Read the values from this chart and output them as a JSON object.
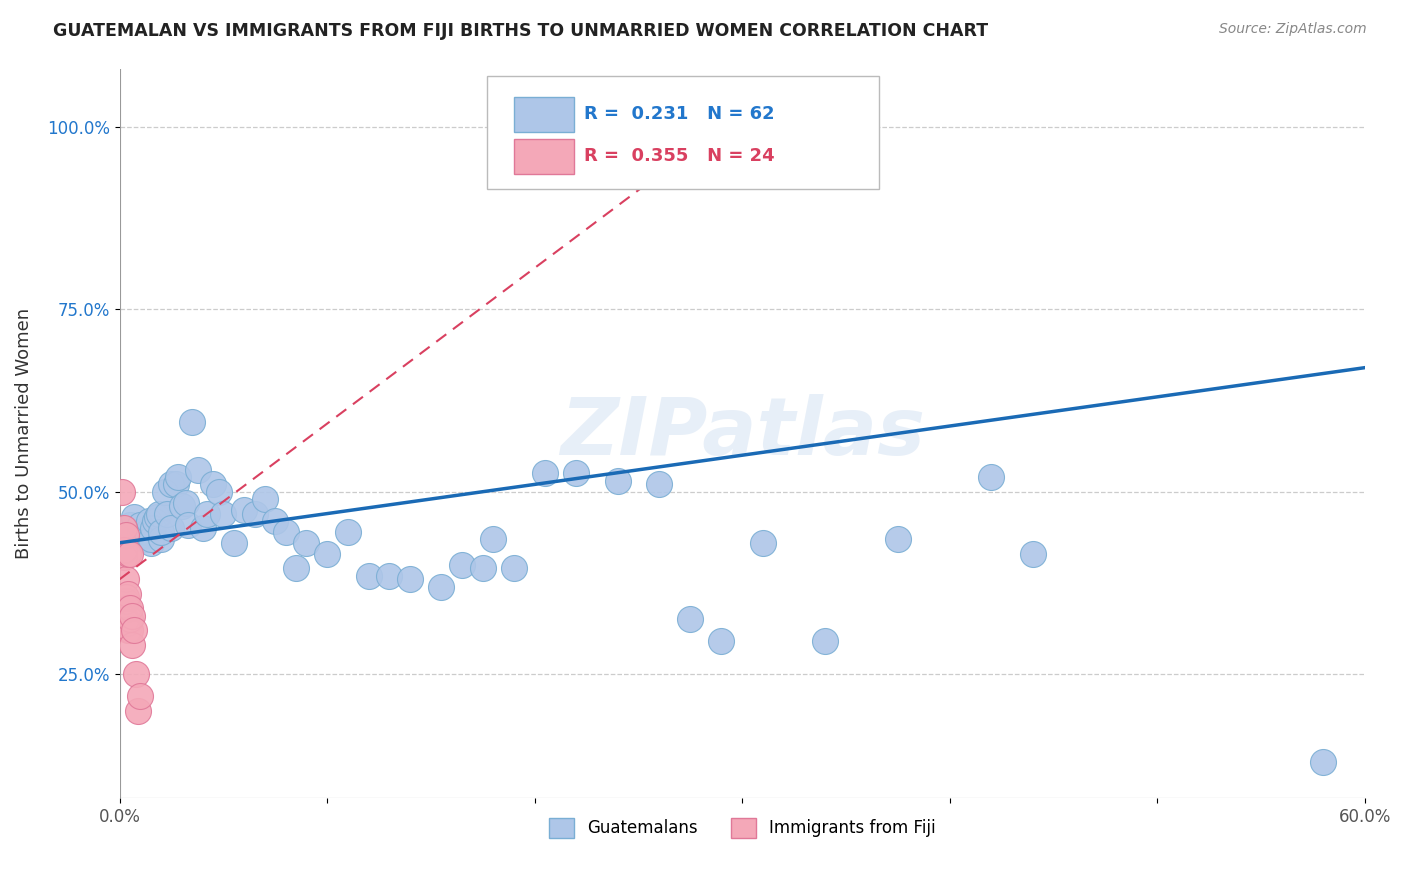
{
  "title": "GUATEMALAN VS IMMIGRANTS FROM FIJI BIRTHS TO UNMARRIED WOMEN CORRELATION CHART",
  "source": "Source: ZipAtlas.com",
  "ylabel": "Births to Unmarried Women",
  "xlim": [
    0.0,
    0.6
  ],
  "ylim": [
    0.08,
    1.08
  ],
  "xticks": [
    0.0,
    0.1,
    0.2,
    0.3,
    0.4,
    0.5,
    0.6
  ],
  "xticklabels": [
    "0.0%",
    "",
    "",
    "",
    "",
    "",
    "60.0%"
  ],
  "yticks": [
    0.25,
    0.5,
    0.75,
    1.0
  ],
  "yticklabels": [
    "25.0%",
    "50.0%",
    "75.0%",
    "100.0%"
  ],
  "R_blue": 0.231,
  "N_blue": 62,
  "R_pink": 0.355,
  "N_pink": 24,
  "blue_color": "#aec6e8",
  "blue_edge_color": "#7aaed4",
  "pink_color": "#f4a8b8",
  "pink_edge_color": "#e07898",
  "trend_blue_color": "#1a6ab5",
  "trend_pink_color": "#d94060",
  "watermark": "ZIPatlas",
  "guatemalan_x": [
    0.005,
    0.007,
    0.01,
    0.01,
    0.012,
    0.012,
    0.013,
    0.014,
    0.015,
    0.015,
    0.016,
    0.017,
    0.018,
    0.019,
    0.02,
    0.02,
    0.022,
    0.023,
    0.025,
    0.025,
    0.027,
    0.028,
    0.03,
    0.032,
    0.033,
    0.035,
    0.038,
    0.04,
    0.042,
    0.045,
    0.048,
    0.05,
    0.055,
    0.06,
    0.065,
    0.07,
    0.075,
    0.08,
    0.085,
    0.09,
    0.1,
    0.11,
    0.12,
    0.13,
    0.14,
    0.155,
    0.165,
    0.175,
    0.18,
    0.19,
    0.205,
    0.22,
    0.24,
    0.26,
    0.275,
    0.29,
    0.31,
    0.34,
    0.375,
    0.42,
    0.44,
    0.58
  ],
  "guatemalan_y": [
    0.455,
    0.465,
    0.445,
    0.455,
    0.435,
    0.44,
    0.445,
    0.46,
    0.43,
    0.435,
    0.45,
    0.46,
    0.465,
    0.47,
    0.435,
    0.445,
    0.5,
    0.47,
    0.45,
    0.51,
    0.51,
    0.52,
    0.48,
    0.485,
    0.455,
    0.595,
    0.53,
    0.45,
    0.47,
    0.51,
    0.5,
    0.47,
    0.43,
    0.475,
    0.47,
    0.49,
    0.46,
    0.445,
    0.395,
    0.43,
    0.415,
    0.445,
    0.385,
    0.385,
    0.38,
    0.37,
    0.4,
    0.395,
    0.435,
    0.395,
    0.525,
    0.525,
    0.515,
    0.51,
    0.325,
    0.295,
    0.43,
    0.295,
    0.435,
    0.52,
    0.415,
    0.13
  ],
  "fiji_x": [
    0.001,
    0.002,
    0.002,
    0.002,
    0.003,
    0.003,
    0.003,
    0.003,
    0.003,
    0.004,
    0.004,
    0.004,
    0.004,
    0.004,
    0.005,
    0.005,
    0.005,
    0.005,
    0.006,
    0.006,
    0.007,
    0.008,
    0.009,
    0.01
  ],
  "fiji_y": [
    0.5,
    0.45,
    0.41,
    0.42,
    0.38,
    0.35,
    0.325,
    0.355,
    0.44,
    0.32,
    0.31,
    0.34,
    0.36,
    0.415,
    0.31,
    0.325,
    0.34,
    0.415,
    0.29,
    0.33,
    0.31,
    0.25,
    0.2,
    0.22
  ],
  "blue_trend_x0": 0.0,
  "blue_trend_x1": 0.6,
  "blue_trend_y0": 0.43,
  "blue_trend_y1": 0.67,
  "pink_trend_x0": 0.0,
  "pink_trend_x1": 0.3,
  "pink_trend_y0": 0.38,
  "pink_trend_y1": 1.02
}
